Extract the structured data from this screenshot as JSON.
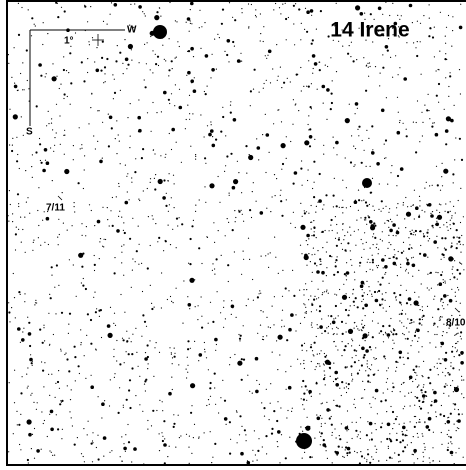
{
  "title": "14 Irene",
  "compass": {
    "west": "W",
    "south": "S",
    "scale": "1°"
  },
  "dates": [
    "7/11",
    "8/10"
  ]
}
